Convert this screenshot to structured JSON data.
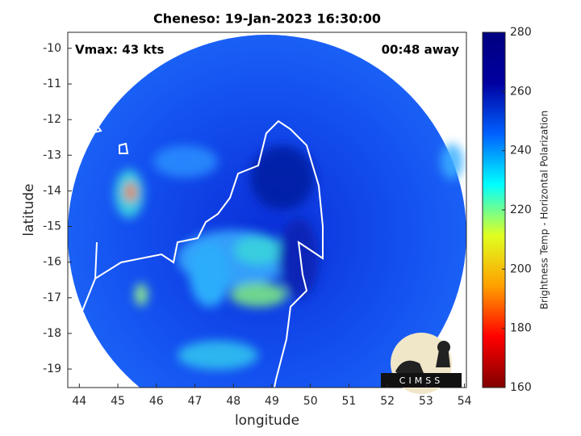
{
  "chart_data": {
    "type": "map",
    "title": "Cheneso: 19-Jan-2023 16:30:00",
    "xlabel": "longitude",
    "ylabel": "latitude",
    "annotations": [
      "Vmax: 43 kts",
      "00:48 away"
    ],
    "xlim": [
      43.7,
      54.05
    ],
    "xticks": [
      44,
      45,
      46,
      47,
      48,
      49,
      50,
      51,
      52,
      53,
      54
    ],
    "ylim": [
      -19.52,
      -9.55
    ],
    "yticks": [
      -10,
      -11,
      -12,
      -13,
      -14,
      -15,
      -16,
      -17,
      -18,
      -19
    ],
    "colorbar": {
      "label": "Brightness Temp - Horizontal Polarization",
      "lim": [
        160,
        280
      ],
      "ticks": [
        160,
        180,
        200,
        220,
        240,
        260,
        280
      ],
      "colors": [
        "#800000",
        "#ff0000",
        "#ffa000",
        "#e0ff20",
        "#00ffff",
        "#0060ff",
        "#0000a0",
        "#000080"
      ]
    },
    "logo": "CIMSS"
  }
}
